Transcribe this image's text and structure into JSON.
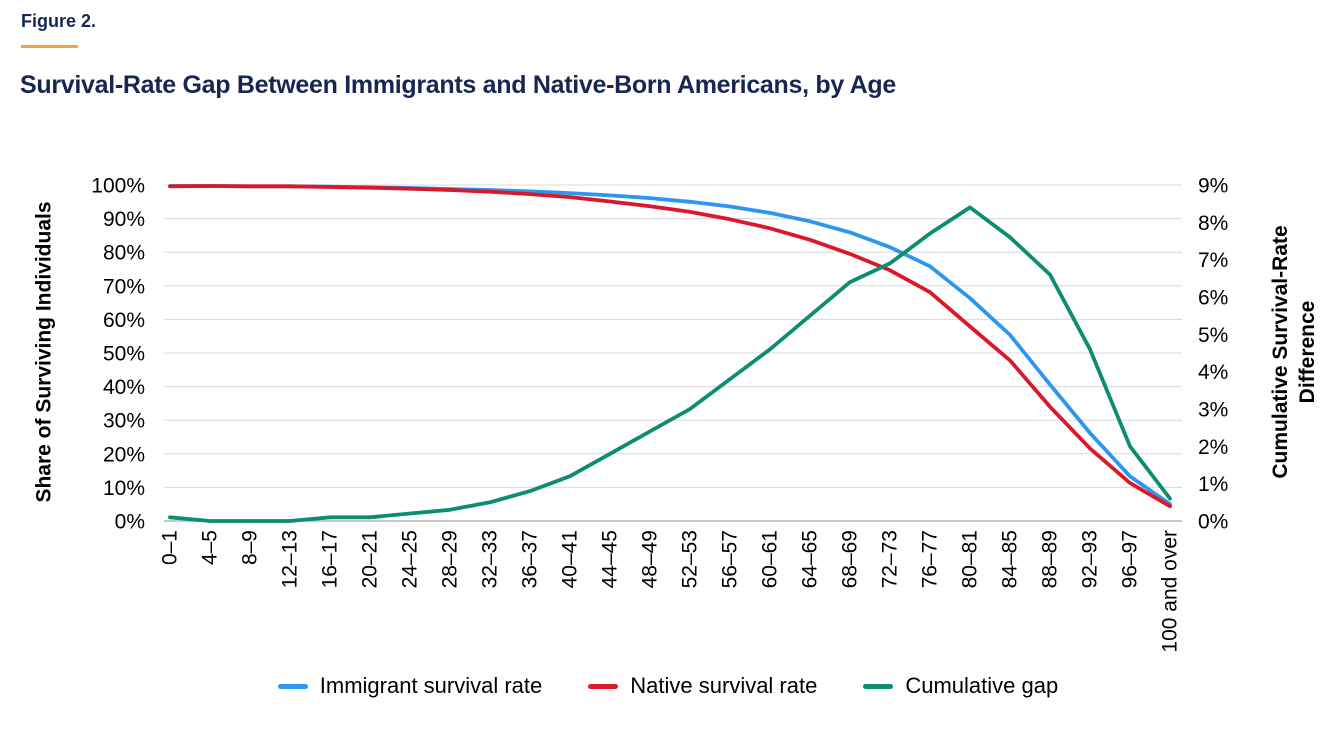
{
  "header": {
    "figure_label": "Figure 2.",
    "title": "Survival-Rate Gap Between Immigrants and Native-Born Americans, by Age"
  },
  "colors": {
    "heading": "#172652",
    "accent": "#f0a43c",
    "gridline": "#d9d9d9",
    "axis_line": "#b7b7b7",
    "tick_text": "#000000"
  },
  "chart_data": {
    "type": "line",
    "title": "Survival-Rate Gap Between Immigrants and Native-Born Americans, by Age",
    "xlabel": "",
    "grid": true,
    "legend_position": "bottom",
    "categories": [
      "0–1",
      "4–5",
      "8–9",
      "12–13",
      "16–17",
      "20–21",
      "24–25",
      "28–29",
      "32–33",
      "36–37",
      "40–41",
      "44–45",
      "48–49",
      "52–53",
      "56–57",
      "60–61",
      "64–65",
      "68–69",
      "72–73",
      "76–77",
      "80–81",
      "84–85",
      "88–89",
      "92–93",
      "96–97",
      "100 and over"
    ],
    "left_axis": {
      "label": "Share of Surviving Individuals",
      "ticks": [
        "100%",
        "90%",
        "80%",
        "70%",
        "60%",
        "50%",
        "40%",
        "30%",
        "20%",
        "10%",
        "0%"
      ],
      "range": [
        0,
        100
      ]
    },
    "right_axis": {
      "label_line1": "Cumulative Survival-Rate",
      "label_line2": "Difference",
      "ticks": [
        "9%",
        "8%",
        "7%",
        "6%",
        "5%",
        "4%",
        "3%",
        "2%",
        "1%",
        "0%"
      ],
      "range": [
        0,
        9
      ]
    },
    "series": [
      {
        "name": "Immigrant survival rate",
        "axis": "left",
        "color": "#2d96ee",
        "values": [
          99.7,
          99.7,
          99.6,
          99.6,
          99.5,
          99.3,
          99.1,
          98.8,
          98.5,
          98.1,
          97.6,
          96.9,
          96.1,
          95.0,
          93.6,
          91.7,
          89.2,
          85.9,
          81.5,
          75.8,
          66.3,
          55.4,
          40.6,
          26.2,
          13.3,
          5.0
        ]
      },
      {
        "name": "Native survival rate",
        "axis": "left",
        "color": "#d9182b",
        "values": [
          99.6,
          99.7,
          99.6,
          99.6,
          99.4,
          99.2,
          98.9,
          98.5,
          98.0,
          97.3,
          96.4,
          95.1,
          93.7,
          92.0,
          89.8,
          87.1,
          83.7,
          79.5,
          74.6,
          68.1,
          57.9,
          47.8,
          34.0,
          21.6,
          11.3,
          4.4
        ]
      },
      {
        "name": "Cumulative gap",
        "axis": "right",
        "color": "#0c8d72",
        "values": [
          0.1,
          0.0,
          0.0,
          0.0,
          0.1,
          0.1,
          0.2,
          0.3,
          0.5,
          0.8,
          1.2,
          1.8,
          2.4,
          3.0,
          3.8,
          4.6,
          5.5,
          6.4,
          6.9,
          7.7,
          8.4,
          7.6,
          6.6,
          4.6,
          2.0,
          0.6
        ]
      }
    ]
  }
}
